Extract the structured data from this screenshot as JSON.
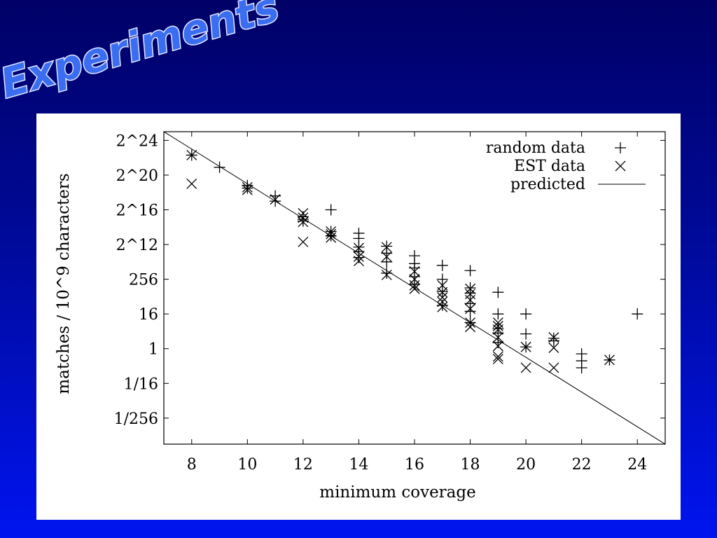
{
  "slide": {
    "title": "Experiments",
    "title_fill": "#3a6df0",
    "title_stroke": "#dfe6ff"
  },
  "chart_data": {
    "type": "scatter",
    "title": "",
    "xlabel": "minimum coverage",
    "ylabel": "matches / 10^9 characters",
    "y_scale": "log2",
    "xlim": [
      7,
      25
    ],
    "ylim_log2": [
      -11,
      25
    ],
    "x_ticks": [
      8,
      10,
      12,
      14,
      16,
      18,
      20,
      22,
      24
    ],
    "y_ticks": [
      {
        "label": "2^24",
        "log2": 24
      },
      {
        "label": "2^20",
        "log2": 20
      },
      {
        "label": "2^16",
        "log2": 16
      },
      {
        "label": "2^12",
        "log2": 12
      },
      {
        "label": "256",
        "log2": 8
      },
      {
        "label": "16",
        "log2": 4
      },
      {
        "label": "1",
        "log2": 0
      },
      {
        "label": "1/16",
        "log2": -4
      },
      {
        "label": "1/256",
        "log2": -8
      }
    ],
    "legend": {
      "position": "top-right",
      "entries": [
        "random data",
        "EST data",
        "predicted"
      ]
    },
    "grid": false,
    "series": [
      {
        "name": "random data",
        "marker": "plus",
        "points": [
          [
            8,
            22.3
          ],
          [
            9,
            20.9
          ],
          [
            10,
            18.8
          ],
          [
            10,
            18.5
          ],
          [
            11,
            17.6
          ],
          [
            11,
            17.0
          ],
          [
            12,
            15.2
          ],
          [
            12,
            14.9
          ],
          [
            12,
            14.7
          ],
          [
            13,
            16.0
          ],
          [
            13,
            13.5
          ],
          [
            13,
            13.0
          ],
          [
            14,
            13.3
          ],
          [
            14,
            12.7
          ],
          [
            14,
            11.7
          ],
          [
            14,
            11.2
          ],
          [
            14,
            10.5
          ],
          [
            15,
            11.8
          ],
          [
            15,
            11.0
          ],
          [
            15,
            10.0
          ],
          [
            15,
            8.7
          ],
          [
            16,
            10.7
          ],
          [
            16,
            9.8
          ],
          [
            16,
            9.3
          ],
          [
            16,
            8.3
          ],
          [
            16,
            7.4
          ],
          [
            17,
            9.6
          ],
          [
            17,
            8.0
          ],
          [
            17,
            6.6
          ],
          [
            17,
            5.0
          ],
          [
            18,
            9.0
          ],
          [
            18,
            7.0
          ],
          [
            18,
            6.4
          ],
          [
            18,
            5.2
          ],
          [
            18,
            4.3
          ],
          [
            18,
            3.0
          ],
          [
            19,
            6.5
          ],
          [
            19,
            4.0
          ],
          [
            19,
            2.3
          ],
          [
            19,
            1.8
          ],
          [
            19,
            0.7
          ],
          [
            20,
            4.0
          ],
          [
            20,
            1.7
          ],
          [
            20,
            0.2
          ],
          [
            21,
            1.2
          ],
          [
            21,
            0.9
          ],
          [
            22,
            -0.6
          ],
          [
            22,
            -1.4
          ],
          [
            22,
            -2.2
          ],
          [
            23,
            -1.3
          ],
          [
            24,
            4.0
          ]
        ]
      },
      {
        "name": "EST data",
        "marker": "cross",
        "points": [
          [
            8,
            22.3
          ],
          [
            8,
            19.0
          ],
          [
            10,
            18.6
          ],
          [
            10,
            18.3
          ],
          [
            11,
            17.2
          ],
          [
            12,
            15.6
          ],
          [
            12,
            15.1
          ],
          [
            12,
            14.6
          ],
          [
            12,
            12.3
          ],
          [
            13,
            13.5
          ],
          [
            13,
            13.2
          ],
          [
            13,
            12.8
          ],
          [
            14,
            11.6
          ],
          [
            14,
            10.6
          ],
          [
            14,
            10.1
          ],
          [
            15,
            11.7
          ],
          [
            15,
            10.6
          ],
          [
            15,
            8.5
          ],
          [
            16,
            8.9
          ],
          [
            16,
            8.0
          ],
          [
            16,
            7.3
          ],
          [
            16,
            6.9
          ],
          [
            17,
            7.3
          ],
          [
            17,
            6.5
          ],
          [
            17,
            5.9
          ],
          [
            17,
            5.4
          ],
          [
            17,
            4.8
          ],
          [
            18,
            6.9
          ],
          [
            18,
            6.3
          ],
          [
            18,
            5.6
          ],
          [
            18,
            4.6
          ],
          [
            18,
            3.0
          ],
          [
            18,
            2.5
          ],
          [
            19,
            3.0
          ],
          [
            19,
            2.6
          ],
          [
            19,
            2.2
          ],
          [
            19,
            1.3
          ],
          [
            19,
            0.3
          ],
          [
            19,
            -0.9
          ],
          [
            19,
            -1.2
          ],
          [
            20,
            0.2
          ],
          [
            20,
            -2.2
          ],
          [
            21,
            1.3
          ],
          [
            21,
            0.1
          ],
          [
            21,
            -2.2
          ],
          [
            23,
            -1.3
          ]
        ]
      },
      {
        "name": "predicted",
        "marker": "line",
        "points": [
          [
            7,
            25.0
          ],
          [
            25,
            -11.0
          ]
        ]
      }
    ]
  }
}
